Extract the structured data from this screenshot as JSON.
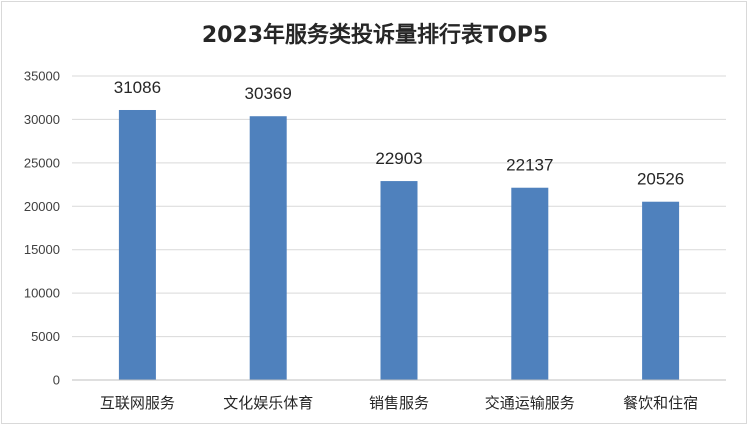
{
  "chart_data": {
    "type": "bar",
    "title": "2023年服务类投诉量排行表TOP5",
    "categories": [
      "互联网服务",
      "文化娱乐体育",
      "销售服务",
      "交通运输服务",
      "餐饮和住宿"
    ],
    "values": [
      31086,
      30369,
      22903,
      22137,
      20526
    ],
    "xlabel": "",
    "ylabel": "",
    "ylim": [
      0,
      35000
    ],
    "yticks": [
      0,
      5000,
      10000,
      15000,
      20000,
      25000,
      30000,
      35000
    ],
    "grid": true,
    "legend": "none",
    "bar_color": "#4f81bd"
  }
}
